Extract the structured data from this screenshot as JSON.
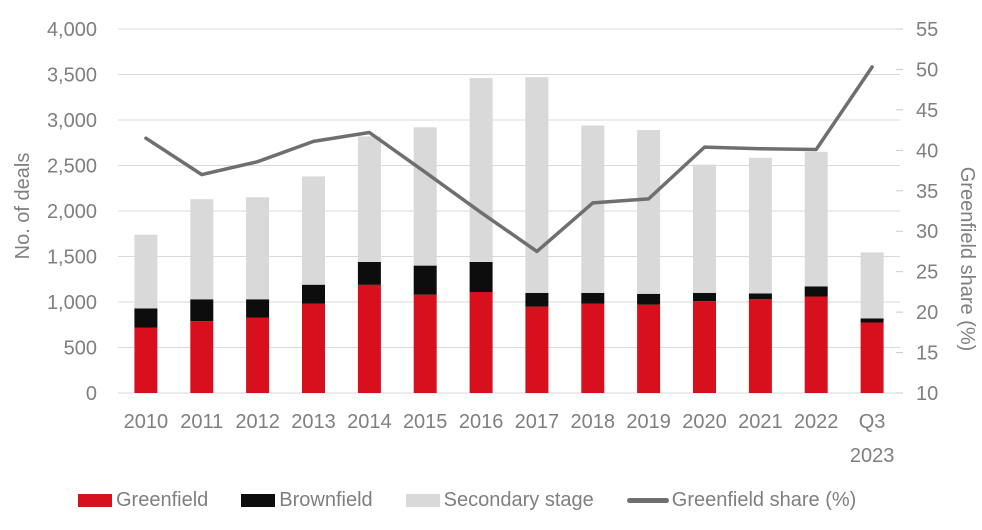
{
  "chart_data": {
    "type": "bar",
    "stacked": true,
    "title": "",
    "categories": [
      "2010",
      "2011",
      "2012",
      "2013",
      "2014",
      "2015",
      "2016",
      "2017",
      "2018",
      "2019",
      "2020",
      "2021",
      "2022",
      "Q3 2023"
    ],
    "series": [
      {
        "name": "Greenfield",
        "color": "#d8101e",
        "values": [
          720,
          790,
          830,
          980,
          1190,
          1080,
          1110,
          950,
          980,
          970,
          1010,
          1030,
          1060,
          775
        ]
      },
      {
        "name": "Brownfield",
        "color": "#0d0d0d",
        "values": [
          210,
          240,
          200,
          210,
          250,
          320,
          330,
          150,
          120,
          120,
          90,
          65,
          110,
          45
        ]
      },
      {
        "name": "Secondary stage",
        "color": "#d9d9d9",
        "values": [
          810,
          1100,
          1120,
          1190,
          1380,
          1520,
          2020,
          2370,
          1840,
          1800,
          1410,
          1490,
          1480,
          725
        ]
      }
    ],
    "line_series": {
      "name": "Greenfield share (%)",
      "color": "#6f6f6f",
      "values": [
        41.5,
        37.0,
        38.6,
        41.1,
        42.2,
        37.3,
        32.3,
        27.5,
        33.5,
        34.0,
        40.4,
        40.2,
        40.1,
        50.3
      ]
    },
    "left_axis": {
      "label": "No. of deals",
      "min": 0,
      "max": 4000,
      "tick_step": 500
    },
    "right_axis": {
      "label": "Greenfield share (%)",
      "min": 10,
      "max": 55,
      "tick_step": 5
    },
    "grid": true,
    "legend_position": "bottom",
    "text_color": "#7f7f7f",
    "grid_color": "#d9d9d9"
  }
}
